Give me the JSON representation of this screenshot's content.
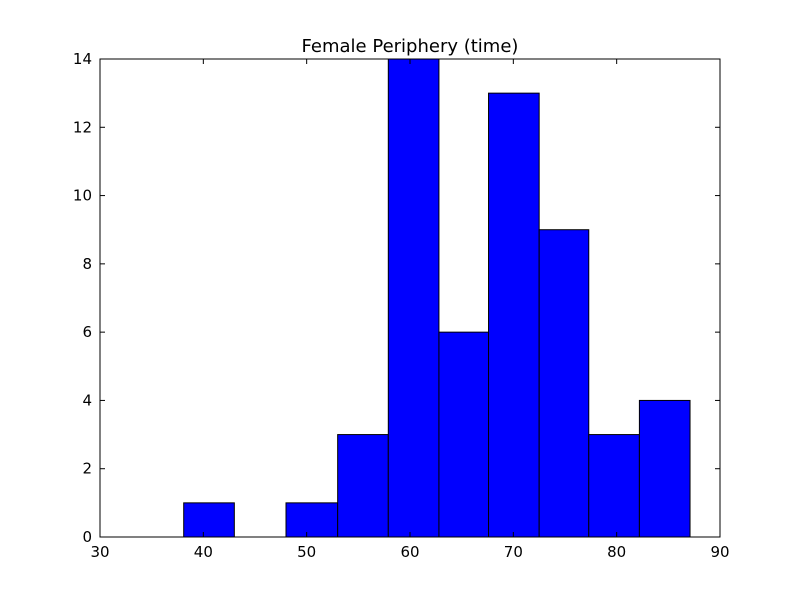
{
  "chart_data": {
    "type": "bar",
    "title": "Female Periphery (time)",
    "xlabel": "",
    "ylabel": "",
    "xlim": [
      30,
      90
    ],
    "ylim": [
      0,
      14
    ],
    "x_ticks": [
      30,
      40,
      50,
      60,
      70,
      80,
      90
    ],
    "y_ticks": [
      0,
      2,
      4,
      6,
      8,
      10,
      12,
      14
    ],
    "bins": [
      {
        "start": 38.1,
        "end": 43.0,
        "count": 1
      },
      {
        "start": 43.0,
        "end": 48.0,
        "count": 0
      },
      {
        "start": 48.0,
        "end": 53.0,
        "count": 1
      },
      {
        "start": 53.0,
        "end": 57.9,
        "count": 3
      },
      {
        "start": 57.9,
        "end": 62.8,
        "count": 14
      },
      {
        "start": 62.8,
        "end": 67.6,
        "count": 6
      },
      {
        "start": 67.6,
        "end": 72.5,
        "count": 13
      },
      {
        "start": 72.5,
        "end": 77.3,
        "count": 9
      },
      {
        "start": 77.3,
        "end": 82.2,
        "count": 3
      },
      {
        "start": 82.2,
        "end": 87.1,
        "count": 4
      }
    ],
    "grid": false,
    "legend": "none",
    "colors": {
      "bar_fill": "#0000ff",
      "bar_edge": "#000000"
    }
  }
}
